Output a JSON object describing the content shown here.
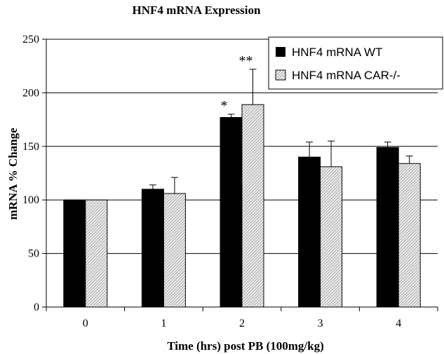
{
  "chart_data": {
    "type": "bar",
    "title": "HNF4 mRNA Expression",
    "xlabel": "Time (hrs) post PB (100mg/kg)",
    "ylabel": "mRNA % Change",
    "categories": [
      "0",
      "1",
      "2",
      "3",
      "4"
    ],
    "ylim": [
      0,
      250
    ],
    "yticks": [
      "0",
      "50",
      "100",
      "150",
      "200",
      "250"
    ],
    "grid": true,
    "legend_position": "top-right",
    "series": [
      {
        "name": "HNF4 mRNA WT",
        "values": [
          100,
          110,
          177,
          140,
          149
        ],
        "errors": [
          0,
          4,
          3,
          14,
          5
        ],
        "color": "#000000"
      },
      {
        "name": "HNF4 mRNA CAR-/-",
        "values": [
          100,
          106,
          189,
          131,
          134
        ],
        "errors": [
          0,
          15,
          33,
          24,
          7
        ],
        "color": "#c8c8c8"
      }
    ],
    "annotations": [
      {
        "category": "2",
        "series": 0,
        "text": "*"
      },
      {
        "category": "2",
        "series": 1,
        "text": "**"
      }
    ]
  }
}
